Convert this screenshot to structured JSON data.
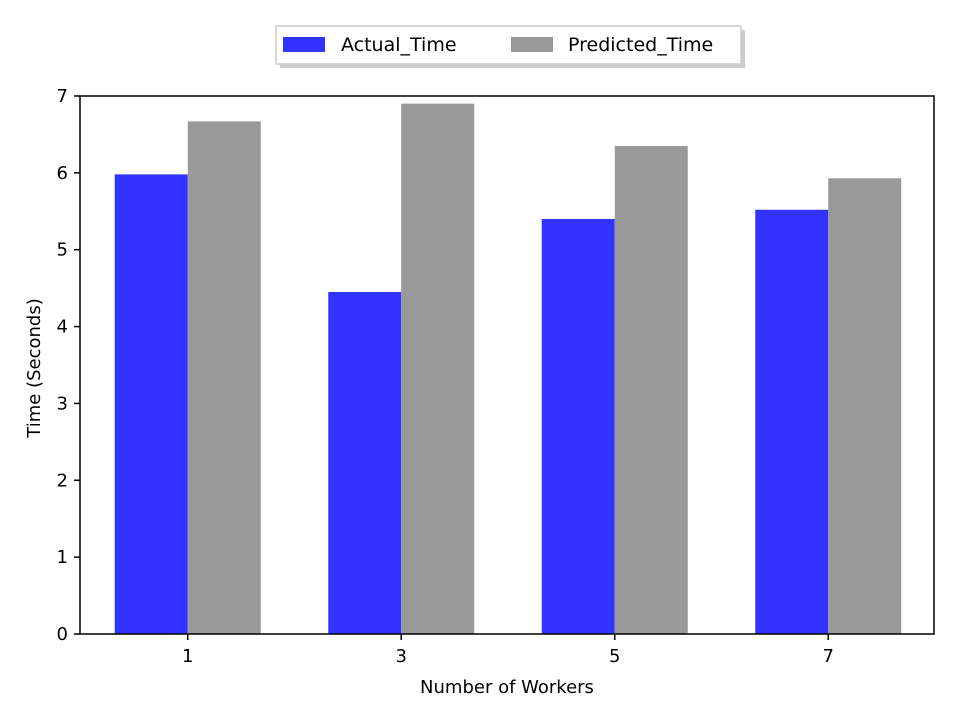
{
  "chart_data": {
    "type": "bar",
    "categories": [
      "1",
      "3",
      "5",
      "7"
    ],
    "series": [
      {
        "name": "Actual_Time",
        "color": "#3333ff",
        "values": [
          5.98,
          4.45,
          5.4,
          5.52
        ]
      },
      {
        "name": "Predicted_Time",
        "color": "#999999",
        "values": [
          6.67,
          6.9,
          6.35,
          5.93
        ]
      }
    ],
    "xlabel": "Number of Workers",
    "ylabel": "Time (Seconds)",
    "ylim": [
      0,
      7
    ],
    "yticks": [
      "0",
      "1",
      "2",
      "3",
      "4",
      "5",
      "6",
      "7"
    ],
    "grid": false,
    "legend_position": "top-center"
  }
}
